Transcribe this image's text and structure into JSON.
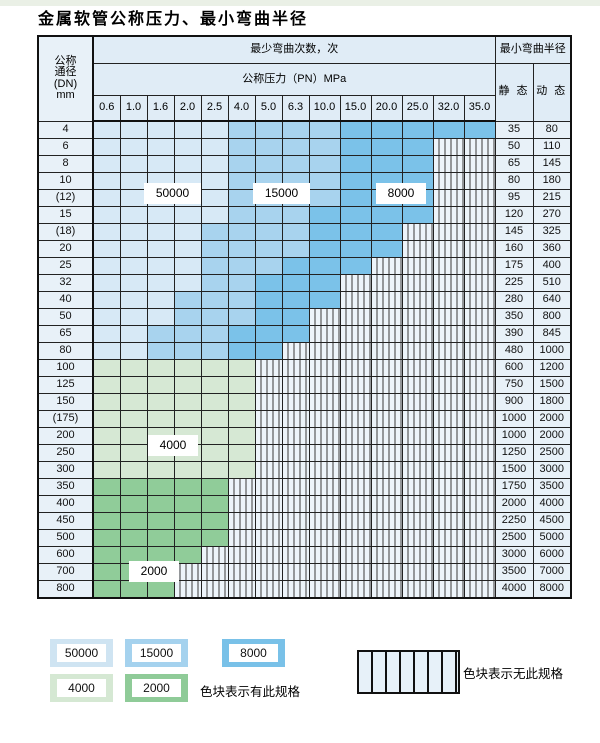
{
  "title": "金属软管公称压力、最小弯曲半径",
  "header": {
    "dn_lines": [
      "公称",
      "通径",
      "(DN)",
      "mm"
    ],
    "cycles_label": "最少弯曲次数，次",
    "pressure_label": "公称压力（PN）MPa",
    "radius_label": "最小弯曲半径",
    "static_label": "静 态",
    "dynamic_label": "动 态",
    "pressures": [
      "0.6",
      "1.0",
      "1.6",
      "2.0",
      "2.5",
      "4.0",
      "5.0",
      "6.3",
      "10.0",
      "15.0",
      "20.0",
      "25.0",
      "32.0",
      "35.0"
    ]
  },
  "region_labels": {
    "cycles_50000": "50000",
    "cycles_15000": "15000",
    "cycles_8000": "8000",
    "cycles_4000": "4000",
    "cycles_2000": "2000"
  },
  "rows": [
    {
      "dn": "4",
      "type": "blue",
      "light_to": 5,
      "medium_to": 9,
      "colored_to": 14,
      "static": "35",
      "dynamic": "80"
    },
    {
      "dn": "6",
      "type": "blue",
      "light_to": 5,
      "medium_to": 9,
      "colored_to": 12,
      "static": "50",
      "dynamic": "110"
    },
    {
      "dn": "8",
      "type": "blue",
      "light_to": 5,
      "medium_to": 9,
      "colored_to": 12,
      "static": "65",
      "dynamic": "145"
    },
    {
      "dn": "10",
      "type": "blue",
      "light_to": 5,
      "medium_to": 9,
      "colored_to": 12,
      "static": "80",
      "dynamic": "180"
    },
    {
      "dn": "(12)",
      "type": "blue",
      "light_to": 5,
      "medium_to": 9,
      "colored_to": 12,
      "static": "95",
      "dynamic": "215"
    },
    {
      "dn": "15",
      "type": "blue",
      "light_to": 5,
      "medium_to": 8,
      "colored_to": 12,
      "static": "120",
      "dynamic": "270"
    },
    {
      "dn": "(18)",
      "type": "blue",
      "light_to": 4,
      "medium_to": 8,
      "colored_to": 11,
      "static": "145",
      "dynamic": "325"
    },
    {
      "dn": "20",
      "type": "blue",
      "light_to": 4,
      "medium_to": 8,
      "colored_to": 11,
      "static": "160",
      "dynamic": "360"
    },
    {
      "dn": "25",
      "type": "blue",
      "light_to": 4,
      "medium_to": 7,
      "colored_to": 10,
      "static": "175",
      "dynamic": "400"
    },
    {
      "dn": "32",
      "type": "blue",
      "light_to": 4,
      "medium_to": 6,
      "colored_to": 9,
      "static": "225",
      "dynamic": "510"
    },
    {
      "dn": "40",
      "type": "blue",
      "light_to": 3,
      "medium_to": 6,
      "colored_to": 9,
      "static": "280",
      "dynamic": "640"
    },
    {
      "dn": "50",
      "type": "blue",
      "light_to": 3,
      "medium_to": 6,
      "colored_to": 8,
      "static": "350",
      "dynamic": "800"
    },
    {
      "dn": "65",
      "type": "blue",
      "light_to": 2,
      "medium_to": 5,
      "colored_to": 8,
      "static": "390",
      "dynamic": "845"
    },
    {
      "dn": "80",
      "type": "blue",
      "light_to": 2,
      "medium_to": 5,
      "colored_to": 7,
      "static": "480",
      "dynamic": "1000"
    },
    {
      "dn": "100",
      "type": "g4000",
      "colored_to": 6,
      "static": "600",
      "dynamic": "1200"
    },
    {
      "dn": "125",
      "type": "g4000",
      "colored_to": 6,
      "static": "750",
      "dynamic": "1500"
    },
    {
      "dn": "150",
      "type": "g4000",
      "colored_to": 6,
      "static": "900",
      "dynamic": "1800"
    },
    {
      "dn": "(175)",
      "type": "g4000",
      "colored_to": 6,
      "static": "1000",
      "dynamic": "2000"
    },
    {
      "dn": "200",
      "type": "g4000",
      "colored_to": 6,
      "static": "1000",
      "dynamic": "2000"
    },
    {
      "dn": "250",
      "type": "g4000",
      "colored_to": 6,
      "static": "1250",
      "dynamic": "2500"
    },
    {
      "dn": "300",
      "type": "g4000",
      "colored_to": 6,
      "static": "1500",
      "dynamic": "3000"
    },
    {
      "dn": "350",
      "type": "g2000",
      "colored_to": 5,
      "static": "1750",
      "dynamic": "3500"
    },
    {
      "dn": "400",
      "type": "g2000",
      "colored_to": 5,
      "static": "2000",
      "dynamic": "4000"
    },
    {
      "dn": "450",
      "type": "g2000",
      "colored_to": 5,
      "static": "2250",
      "dynamic": "4500"
    },
    {
      "dn": "500",
      "type": "g2000",
      "colored_to": 5,
      "static": "2500",
      "dynamic": "5000"
    },
    {
      "dn": "600",
      "type": "g2000",
      "colored_to": 4,
      "static": "3000",
      "dynamic": "6000"
    },
    {
      "dn": "700",
      "type": "g2000",
      "colored_to": 3,
      "static": "3500",
      "dynamic": "7000"
    },
    {
      "dn": "800",
      "type": "g2000",
      "colored_to": 3,
      "static": "4000",
      "dynamic": "8000"
    }
  ],
  "legend": {
    "items": [
      {
        "value": "50000",
        "key": "blue_light"
      },
      {
        "value": "15000",
        "key": "blue_medium"
      },
      {
        "value": "8000",
        "key": "blue_dark"
      },
      {
        "value": "4000",
        "key": "green_4000"
      },
      {
        "value": "2000",
        "key": "green_2000"
      }
    ],
    "has_spec_text": "色块表示有此规格",
    "no_spec_text": "色块表示无此规格"
  },
  "colors": {
    "blue_light": "#d7e9f6",
    "blue_medium": "#a8d3ee",
    "blue_dark": "#7bc2e9",
    "green_4000": "#d6e8d4",
    "green_2000": "#90cc99",
    "hatch_bg": "#edf4fa",
    "label_col_bg": "#e8f1f8",
    "header_bg": "#e0ecf6",
    "grid_line": "#222222"
  }
}
